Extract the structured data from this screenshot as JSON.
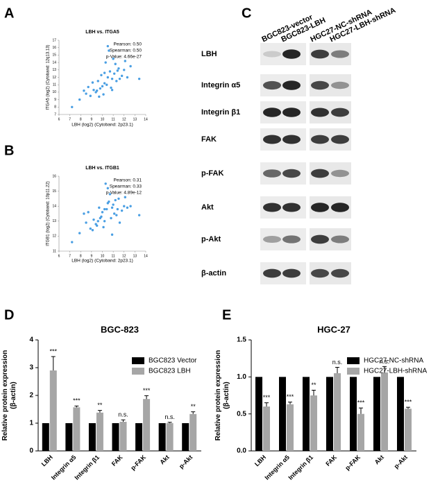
{
  "panel_labels": [
    "A",
    "B",
    "C",
    "D",
    "E"
  ],
  "chart_data": [
    {
      "type": "scatter",
      "title": "LBH vs. ITGA5",
      "x_label": "LBH (log2) (Cytoband: 2p23.1)",
      "y_label": "ITGA5 (log2) (Cytoband: 12q13.13)",
      "annotations": [
        "Pearson: 0.50",
        "Spearman: 0.50",
        "p-Value: 4.66e-27"
      ],
      "color": "#4a9fe3",
      "xlim": [
        6,
        14
      ],
      "xticks": [
        6,
        7,
        8,
        9,
        10,
        11,
        12,
        13,
        14
      ],
      "ylim": [
        7,
        17
      ],
      "yticks": [
        7,
        8,
        9,
        10,
        11,
        12,
        13,
        14,
        15,
        16,
        17
      ],
      "x": [
        9.8,
        10.2,
        10.5,
        11.1,
        9.4,
        10.9,
        11.5,
        8.9,
        10.0,
        12.0,
        9.6,
        10.7,
        11.3,
        8.5,
        10.3,
        11.8,
        9.2,
        10.6,
        12.3,
        7.9,
        10.1,
        11.0,
        9.9,
        10.4,
        11.6,
        8.7,
        12.6,
        9.5,
        10.8,
        11.2,
        7.2,
        13.4,
        10.5,
        9.1,
        11.4,
        10.9,
        12.1,
        9.7,
        8.3,
        10.2
      ],
      "values": [
        10.5,
        11.2,
        12.0,
        12.5,
        10.0,
        11.8,
        13.2,
        9.5,
        10.8,
        13.0,
        11.5,
        12.8,
        11.5,
        9.8,
        14.0,
        12.2,
        10.3,
        15.6,
        12.0,
        9.0,
        9.7,
        14.5,
        12.3,
        11.0,
        11.8,
        10.7,
        13.5,
        10.2,
        10.6,
        13.8,
        8.0,
        11.8,
        16.2,
        11.3,
        12.9,
        10.3,
        14.2,
        9.4,
        10.2,
        12.6
      ]
    },
    {
      "type": "scatter",
      "title": "LBH vs. ITGB1",
      "x_label": "LBH (log2) (Cytoband: 2p23.1)",
      "y_label": "ITGB1 (log2) (Cytoband: 10p11.22)",
      "annotations": [
        "Pearson: 0.31",
        "Spearman: 0.33",
        "p-Value: 4.89e-12"
      ],
      "color": "#4a9fe3",
      "xlim": [
        6,
        14
      ],
      "xticks": [
        6,
        7,
        8,
        9,
        10,
        11,
        12,
        13,
        14
      ],
      "ylim": [
        11,
        16
      ],
      "yticks": [
        11,
        12,
        13,
        14,
        15,
        16
      ],
      "x": [
        9.8,
        10.2,
        10.5,
        11.1,
        9.4,
        10.9,
        11.5,
        8.9,
        10.0,
        12.0,
        9.6,
        10.7,
        11.3,
        8.5,
        10.3,
        11.8,
        9.2,
        10.6,
        12.3,
        7.9,
        10.1,
        11.0,
        9.9,
        10.4,
        11.6,
        8.7,
        12.6,
        9.5,
        10.8,
        11.2,
        7.2,
        13.4,
        10.5,
        9.1,
        11.4,
        10.9,
        12.1,
        9.7,
        8.3,
        10.2
      ],
      "values": [
        13.2,
        13.8,
        14.2,
        13.5,
        12.8,
        13.9,
        14.5,
        12.5,
        13.6,
        14.0,
        13.0,
        14.8,
        13.4,
        12.9,
        15.5,
        13.7,
        13.1,
        14.3,
        13.9,
        12.2,
        12.6,
        14.1,
        13.3,
        13.8,
        12.9,
        13.6,
        14.0,
        12.7,
        13.2,
        14.4,
        11.6,
        13.4,
        15.2,
        12.4,
        13.8,
        12.1,
        14.6,
        13.9,
        13.5,
        13.0
      ]
    },
    {
      "type": "bar",
      "title": "BGC-823",
      "y_label": "Relative protein expression (β-actin)",
      "categories": [
        "LBH",
        "Integrin α5",
        "Integrin β1",
        "FAK",
        "p-FAK",
        "Akt",
        "p-Akt"
      ],
      "series": [
        {
          "name": "BGC823 Vector",
          "color": "#000000",
          "values": [
            1,
            1,
            1,
            1,
            1,
            1,
            1
          ]
        },
        {
          "name": "BGC823 LBH",
          "color": "#a6a6a6",
          "values": [
            2.9,
            1.57,
            1.38,
            1.05,
            1.87,
            1.0,
            1.33
          ],
          "errors": [
            0.5,
            0.05,
            0.08,
            0.07,
            0.12,
            0.03,
            0.08
          ]
        }
      ],
      "annotations": [
        "***",
        "***",
        "**",
        "n.s.",
        "***",
        "n.s.",
        "**"
      ],
      "ylim": [
        0,
        4
      ],
      "yticks": [
        0,
        1,
        2,
        3,
        4
      ]
    },
    {
      "type": "bar",
      "title": "HGC-27",
      "y_label": "Relative protein expression (β-actin)",
      "categories": [
        "LBH",
        "Integrin α5",
        "Integrin β1",
        "FAK",
        "p-FAK",
        "Akt",
        "p-Akt"
      ],
      "series": [
        {
          "name": "HGC27-NC-shRNA",
          "color": "#000000",
          "values": [
            1,
            1,
            1,
            1,
            1,
            1,
            1
          ]
        },
        {
          "name": "HGC27-LBH-shRNA",
          "color": "#a6a6a6",
          "values": [
            0.6,
            0.63,
            0.75,
            1.05,
            0.5,
            1.06,
            0.57
          ],
          "errors": [
            0.05,
            0.03,
            0.07,
            0.08,
            0.08,
            0.08,
            0.02
          ]
        }
      ],
      "annotations": [
        "***",
        "***",
        "**",
        "n.s.",
        "***",
        "n.s.",
        "***"
      ],
      "ylim": [
        0,
        1.5
      ],
      "yticks": [
        {
          "value": 0,
          "label": "0.0"
        },
        {
          "value": 0.5,
          "label": "0.5"
        },
        {
          "value": 1,
          "label": "1.0"
        },
        {
          "value": 1.5,
          "label": "1.5"
        }
      ]
    }
  ],
  "blot": {
    "lanes": [
      "BGC823-vector",
      "BGC823-LBH",
      "HGC27-NC-shRNA",
      "HGC27-LBH-shRNA"
    ],
    "proteins": [
      "LBH",
      "Integrin α5",
      "Integrin β1",
      "FAK",
      "p-FAK",
      "Akt",
      "p-Akt",
      "β-actin"
    ]
  }
}
